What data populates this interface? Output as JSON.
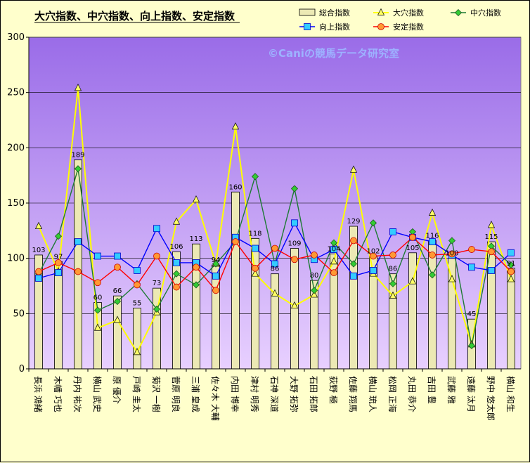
{
  "chart_data": {
    "type": "bar",
    "title": "大穴指数、中穴指数、向上指数、安定指数",
    "watermark": "©Caniの競馬データ研究室",
    "ylim": [
      0,
      300
    ],
    "yticks": [
      0,
      50,
      100,
      150,
      200,
      250,
      300
    ],
    "grid": true,
    "legend_position": "top-right",
    "categories": [
      "長浜 鴻緒",
      "木幡 巧也",
      "丹内 祐次",
      "横山 武史",
      "原 優介",
      "戸崎 圭太",
      "菊沢 一樹",
      "菅原 明良",
      "三浦 皇成",
      "佐々木 大輔",
      "内田 博幸",
      "津村 明秀",
      "石神 深道",
      "大野 拓弥",
      "石田 拓郎",
      "荻野 極",
      "佐藤 翔馬",
      "横山 琉人",
      "松岡 正海",
      "丸田 恭介",
      "吉田 豊",
      "武藤 雅",
      "遠藤 汰月",
      "野中 悠太郎",
      "横山 和生"
    ],
    "series": [
      {
        "name": "総合指数",
        "kind": "bar",
        "color": "#ece9b4",
        "values": [
          103,
          97,
          189,
          60,
          66,
          55,
          73,
          106,
          113,
          94,
          160,
          118,
          86,
          109,
          80,
          104,
          129,
          102,
          86,
          105,
          116,
          100,
          45,
          115,
          91
        ],
        "labels": [
          "103",
          "97",
          "189",
          "60",
          "66",
          "55",
          "73",
          "106",
          "113",
          "94",
          "160",
          "118",
          "86",
          "109",
          "80",
          "104",
          "129",
          "102",
          "86",
          "105",
          "116",
          "100",
          "45",
          "115",
          "91"
        ]
      },
      {
        "name": "大穴指数",
        "kind": "line",
        "color": "#ffff00",
        "marker": "triangle",
        "markerColor": "#ffff66",
        "values": [
          129,
          88,
          254,
          37,
          44,
          15,
          51,
          133,
          153,
          95,
          219,
          86,
          68,
          57,
          67,
          97,
          180,
          86,
          66,
          79,
          141,
          81,
          22,
          130,
          81
        ]
      },
      {
        "name": "中穴指数",
        "kind": "line",
        "color": "#1e7a34",
        "marker": "diamond",
        "markerColor": "#33cc33",
        "values": [
          86,
          120,
          181,
          53,
          61,
          77,
          54,
          86,
          76,
          95,
          115,
          174,
          95,
          163,
          71,
          114,
          95,
          132,
          77,
          124,
          85,
          116,
          21,
          111,
          94
        ]
      },
      {
        "name": "向上指数",
        "kind": "line",
        "color": "#0000ff",
        "marker": "square",
        "markerColor": "#33ccff",
        "values": [
          82,
          87,
          115,
          102,
          102,
          89,
          127,
          96,
          96,
          84,
          119,
          109,
          95,
          132,
          99,
          108,
          84,
          89,
          124,
          119,
          115,
          103,
          92,
          89,
          105
        ]
      },
      {
        "name": "安定指数",
        "kind": "line",
        "color": "#ff0000",
        "marker": "circle",
        "markerColor": "#ff9933",
        "values": [
          88,
          96,
          88,
          78,
          92,
          76,
          102,
          74,
          92,
          71,
          115,
          91,
          109,
          99,
          103,
          87,
          116,
          102,
          103,
          119,
          103,
          104,
          108,
          106,
          88
        ]
      }
    ]
  }
}
